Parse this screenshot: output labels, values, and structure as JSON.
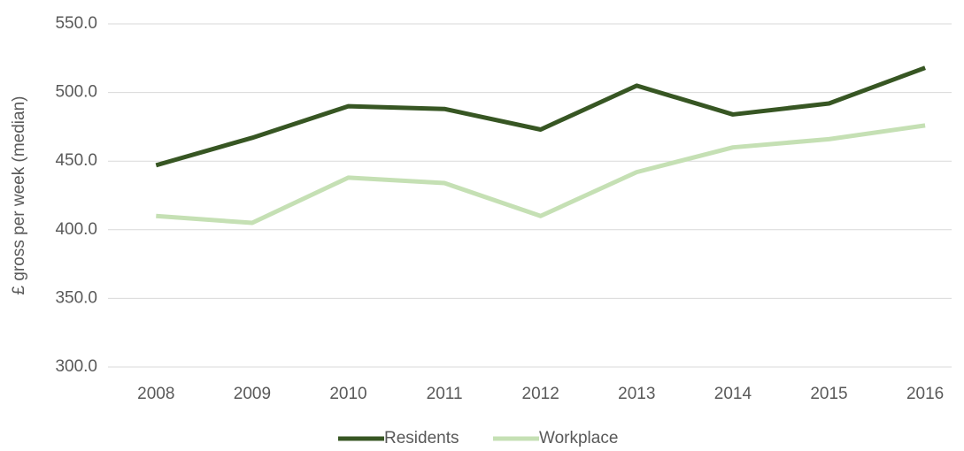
{
  "chart_data": {
    "type": "line",
    "y_label": "£ gross per week (median)",
    "categories": [
      "2008",
      "2009",
      "2010",
      "2011",
      "2012",
      "2013",
      "2014",
      "2015",
      "2016"
    ],
    "series": [
      {
        "name": "Residents",
        "color": "#375623",
        "values": [
          447,
          467,
          490,
          488,
          473,
          505,
          484,
          492,
          518
        ]
      },
      {
        "name": "Workplace",
        "color": "#c5e0b4",
        "values": [
          410,
          405,
          438,
          434,
          410,
          442,
          460,
          466,
          476
        ]
      }
    ],
    "ylim": [
      300,
      550
    ],
    "yticks": [
      {
        "value": 300,
        "label": "300.0"
      },
      {
        "value": 350,
        "label": "350.0"
      },
      {
        "value": 400,
        "label": "400.0"
      },
      {
        "value": 450,
        "label": "450.0"
      },
      {
        "value": 500,
        "label": "500.0"
      },
      {
        "value": 550,
        "label": "550.0"
      }
    ],
    "grid": true,
    "legend": "bottom"
  }
}
